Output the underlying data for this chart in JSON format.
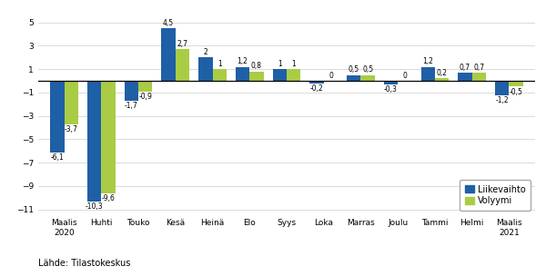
{
  "categories": [
    "Maalis\n2020",
    "Huhti",
    "Touko",
    "Kesä",
    "Heinä",
    "Elo",
    "Syys",
    "Loka",
    "Marras",
    "Joulu",
    "Tammi",
    "Helmi",
    "Maalis\n2021"
  ],
  "liikevaihto": [
    -6.1,
    -10.3,
    -1.7,
    4.5,
    2.0,
    1.2,
    1.0,
    -0.2,
    0.5,
    -0.3,
    1.2,
    0.7,
    -1.2
  ],
  "volyymi": [
    -3.7,
    -9.6,
    -0.9,
    2.7,
    1.0,
    0.8,
    1.0,
    0.0,
    0.5,
    0.0,
    0.2,
    0.7,
    -0.5
  ],
  "liikevaihto_color": "#1F5FA6",
  "volyymi_color": "#AACC44",
  "ylim": [
    -11.5,
    5.5
  ],
  "yticks": [
    -11,
    -9,
    -7,
    -5,
    -3,
    -1,
    1,
    3,
    5
  ],
  "legend_labels": [
    "Liikevaihto",
    "Volyymi"
  ],
  "source_text": "Lähde: Tilastokeskus",
  "bar_width": 0.38
}
